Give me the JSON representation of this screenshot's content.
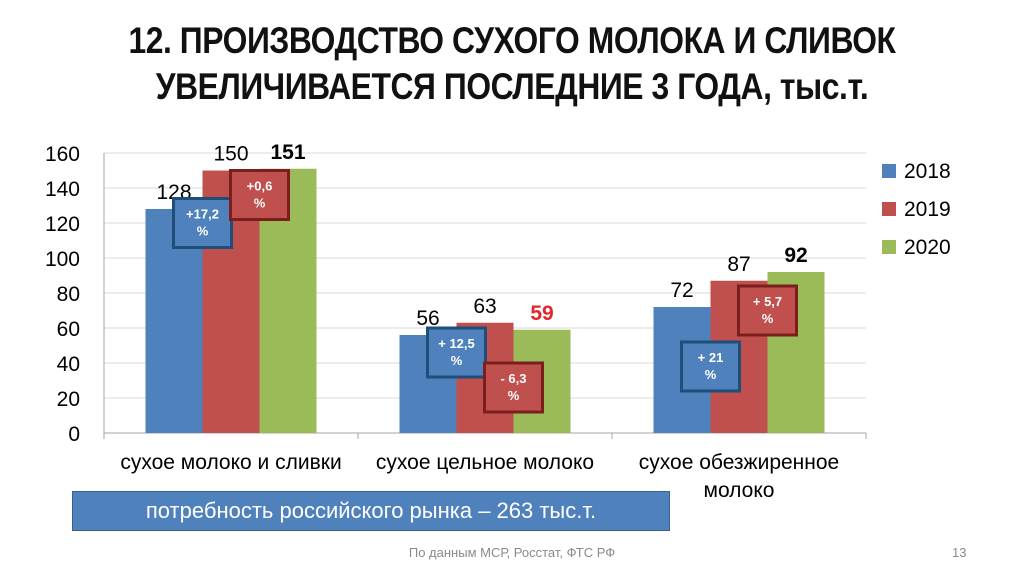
{
  "title": {
    "line1": "12. ПРОИЗВОДСТВО СУХОГО МОЛОКА И СЛИВОК",
    "line2": "УВЕЛИЧИВАЕТСЯ ПОСЛЕДНИЕ 3 ГОДА, тыс.т."
  },
  "chart_data": {
    "type": "bar",
    "categories": [
      "сухое молоко и сливки",
      "сухое цельное молоко",
      "сухое обезжиренное молоко"
    ],
    "category_lines": [
      [
        "сухое молоко и сливки"
      ],
      [
        "сухое цельное молоко"
      ],
      [
        "сухое обезжиренное",
        "молоко"
      ]
    ],
    "series": [
      {
        "name": "2018",
        "color": "#4f81bd",
        "values": [
          128,
          56,
          72
        ],
        "labels": [
          "128",
          "56",
          "72"
        ]
      },
      {
        "name": "2019",
        "color": "#c0504d",
        "values": [
          150,
          63,
          87
        ],
        "labels": [
          "150",
          "63",
          "87"
        ]
      },
      {
        "name": "2020",
        "color": "#9bbb59",
        "values": [
          151,
          59,
          92
        ],
        "labels": [
          "151",
          "59",
          "92"
        ]
      }
    ],
    "label_emphasis": [
      [
        "normal",
        "normal",
        "bold"
      ],
      [
        "normal",
        "normal",
        "bold-red"
      ],
      [
        "normal",
        "normal",
        "bold"
      ]
    ],
    "ylim": [
      0,
      160
    ],
    "yticks": [
      0,
      20,
      40,
      60,
      80,
      100,
      120,
      140,
      160
    ],
    "ytick_labels": [
      "0",
      "20",
      "40",
      "60",
      "80",
      "100",
      "120",
      "140",
      "160"
    ],
    "grid": true,
    "legend_position": "right",
    "annotations": [
      {
        "category": 0,
        "series": 1,
        "lines": [
          "+17,2",
          "%"
        ],
        "style": "blue-box",
        "at_value": 120
      },
      {
        "category": 0,
        "series": 2,
        "lines": [
          "+0,6",
          "%"
        ],
        "style": "red-box",
        "at_value": 136
      },
      {
        "category": 1,
        "series": 1,
        "lines": [
          "+ 12,5",
          "%"
        ],
        "style": "blue-box",
        "at_value": 46
      },
      {
        "category": 1,
        "series": 2,
        "lines": [
          "- 6,3",
          "%"
        ],
        "style": "red-box",
        "at_value": 26
      },
      {
        "category": 2,
        "series": 1,
        "lines": [
          "+ 21",
          "%"
        ],
        "style": "blue-box",
        "at_value": 38
      },
      {
        "category": 2,
        "series": 2,
        "lines": [
          "+ 5,7",
          "%"
        ],
        "style": "red-box",
        "at_value": 70
      }
    ]
  },
  "banner": "потребность российского рынка – 263 тыс.т.",
  "footer": {
    "source": "По данным МСР, Росстат, ФТС РФ",
    "page_number": "13"
  }
}
